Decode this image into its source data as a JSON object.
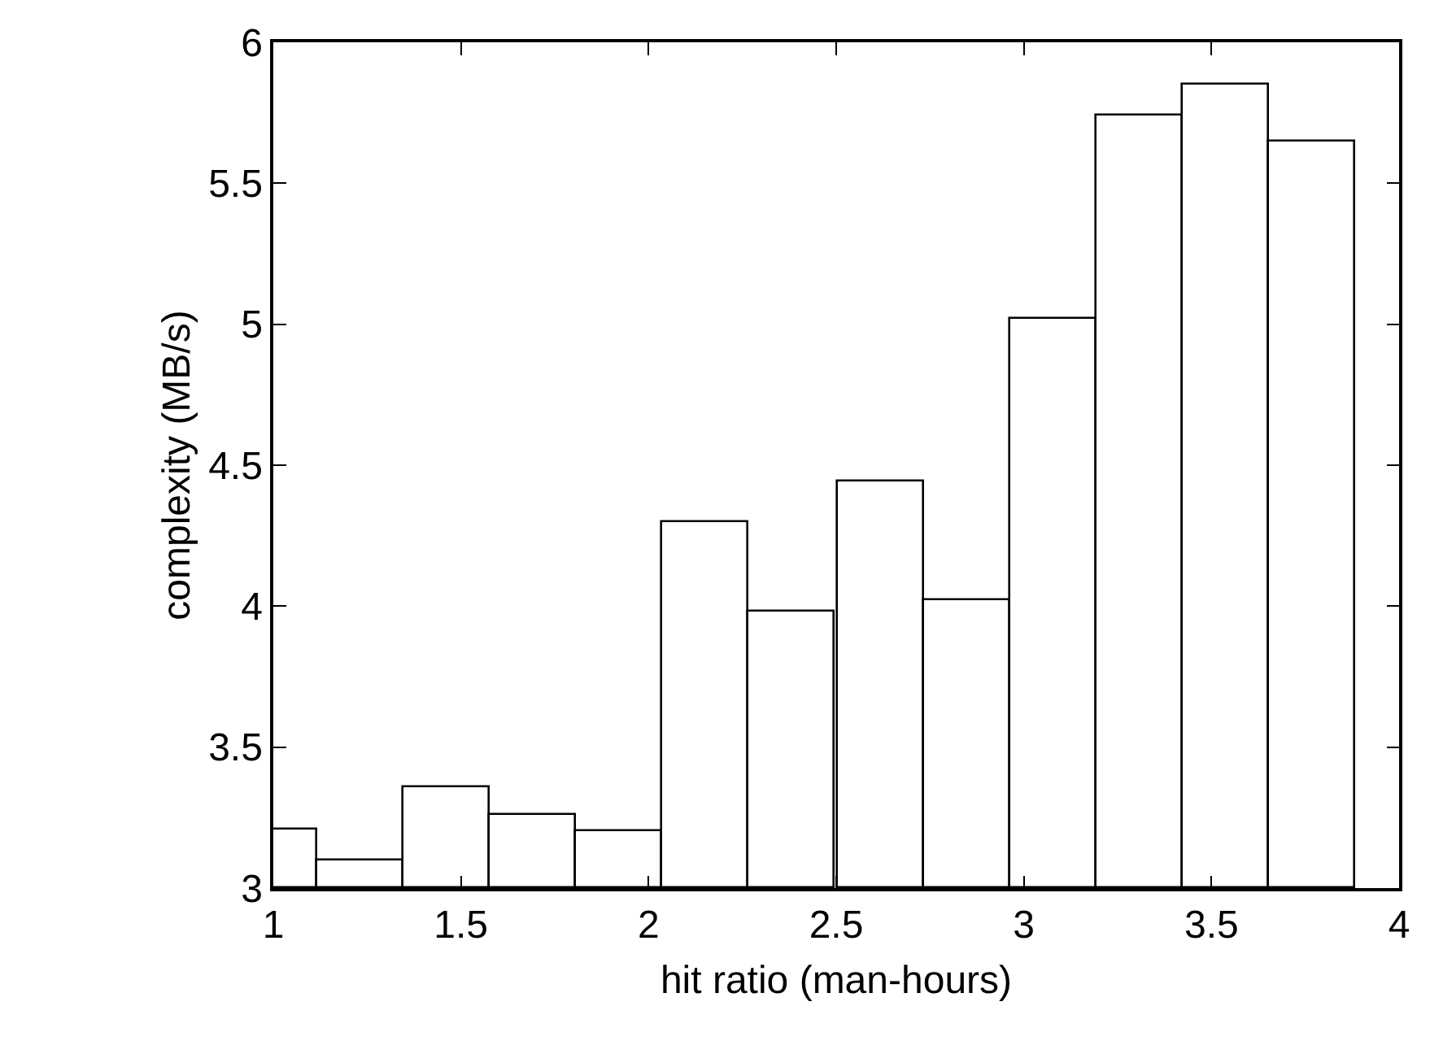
{
  "chart_data": {
    "type": "bar",
    "xlabel": "hit ratio (man-hours)",
    "ylabel": "complexity (MB/s)",
    "x": [
      1,
      1.23,
      1.46,
      1.69,
      1.92,
      2.15,
      2.38,
      2.62,
      2.85,
      3.08,
      3.31,
      3.54,
      3.77
    ],
    "series": [
      {
        "color": "#ffffff",
        "values": [
          3.21,
          3.1,
          3.36,
          3.26,
          3.2,
          4.3,
          3.98,
          4.44,
          4.02,
          5.02,
          5.74,
          5.85,
          5.65
        ]
      }
    ],
    "xlim": [
      1,
      4
    ],
    "xticks": [
      1,
      1.5,
      2,
      2.5,
      3,
      3.5,
      4
    ],
    "ylim": [
      3,
      6
    ],
    "yticks": [
      3,
      3.5,
      4,
      4.5,
      5,
      5.5,
      6
    ]
  }
}
